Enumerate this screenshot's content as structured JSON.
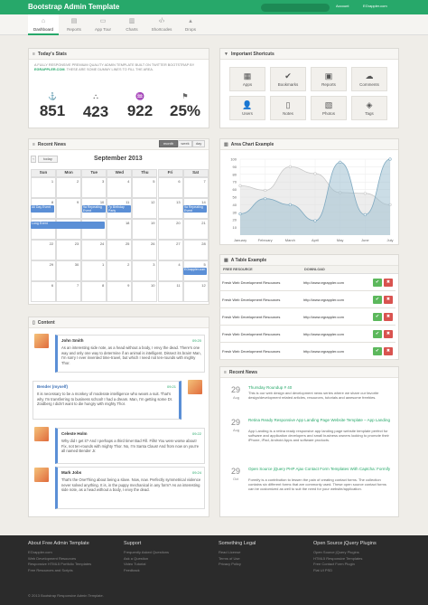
{
  "topbar": {
    "brand": "Bootstrap Admin Template",
    "account": "Account",
    "user": "EGrappler.com"
  },
  "nav": [
    {
      "label": "Dashboard",
      "icon": "⌂"
    },
    {
      "label": "Reports",
      "icon": "▤"
    },
    {
      "label": "App Tour",
      "icon": "▭"
    },
    {
      "label": "Charts",
      "icon": "▥"
    },
    {
      "label": "Shortcodes",
      "icon": "‹/›"
    },
    {
      "label": "Drops",
      "icon": "▴"
    }
  ],
  "stats": {
    "title": "Today's Stats",
    "intro_pre": "A FULLY RESPONSIVE PREMIUM QUALITY ADMIN TEMPLATE BUILT ON TWITTER BOOTSTRAP BY ",
    "intro_link": "EGRAPPLER.COM",
    "intro_post": ". THESE ARE SOME DUMMY LINES TO FILL THE AREA.",
    "items": [
      {
        "icon": "⚓",
        "value": "851"
      },
      {
        "icon": "⛬",
        "value": "423"
      },
      {
        "icon": "♒",
        "value": "922"
      },
      {
        "icon": "⚑",
        "value": "25%"
      }
    ]
  },
  "shortcuts": {
    "title": "Important Shortcuts",
    "items": [
      {
        "label": "Apps",
        "icon": "▦"
      },
      {
        "label": "Bookmarks",
        "icon": "✔"
      },
      {
        "label": "Reports",
        "icon": "▣"
      },
      {
        "label": "Comments",
        "icon": "☁"
      },
      {
        "label": "Users",
        "icon": "👤"
      },
      {
        "label": "Notes",
        "icon": "▯"
      },
      {
        "label": "Photos",
        "icon": "▧"
      },
      {
        "label": "Tags",
        "icon": "◈"
      }
    ]
  },
  "news_cal": {
    "title": "Recent News",
    "today": "today",
    "month": "month",
    "week": "week",
    "day": "day",
    "heading": "September 2013",
    "dow": [
      "Sun",
      "Mon",
      "Tue",
      "Wed",
      "Thu",
      "Fri",
      "Sat"
    ],
    "dates": [
      [
        "1",
        "2",
        "3",
        "4",
        "5",
        "6",
        "7"
      ],
      [
        "8",
        "9",
        "10",
        "11",
        "12",
        "13",
        "14"
      ],
      [
        "15",
        "16",
        "17",
        "18",
        "19",
        "20",
        "21"
      ],
      [
        "22",
        "23",
        "24",
        "25",
        "26",
        "27",
        "28"
      ],
      [
        "29",
        "30",
        "1",
        "2",
        "3",
        "4",
        "5"
      ],
      [
        "6",
        "7",
        "8",
        "9",
        "10",
        "11",
        "12"
      ]
    ],
    "events": {
      "all_day": "All Day Event",
      "nine": "9a Repeating Event",
      "seven": "7p Birthday Party",
      "nine_b": "9a Repeating Event",
      "long": "Long Event",
      "egrappler": "EGrappler.com"
    }
  },
  "area": {
    "title": "Area Chart Example"
  },
  "chart_data": {
    "type": "area",
    "categories": [
      "January",
      "February",
      "March",
      "April",
      "May",
      "June",
      "July"
    ],
    "series": [
      {
        "values": [
          65,
          59,
          90,
          81,
          56,
          55,
          40
        ],
        "color": "#dcdcdc"
      },
      {
        "values": [
          28,
          48,
          40,
          19,
          96,
          27,
          100
        ],
        "color": "#97bbcd"
      }
    ],
    "ylim": [
      0,
      100
    ],
    "yticks": [
      10,
      20,
      30,
      40,
      50,
      60,
      70,
      80,
      90,
      100
    ],
    "grid": true
  },
  "table": {
    "title": "A Table Example",
    "headers": [
      "FREE RESOURCE",
      "DOWNLOAD"
    ],
    "rows": [
      [
        "Fresh Web Development Resources",
        "http://www.egrappler.com"
      ],
      [
        "Fresh Web Development Resources",
        "http://www.egrappler.com"
      ],
      [
        "Fresh Web Development Resources",
        "http://www.egrappler.com"
      ],
      [
        "Fresh Web Development Resources",
        "http://www.egrappler.com"
      ],
      [
        "Fresh Web Development Resources",
        "http://www.egrappler.com"
      ]
    ],
    "ok": "✔",
    "no": "✖"
  },
  "news2": {
    "title": "Recent News",
    "items": [
      {
        "day": "29",
        "mon": "Aug",
        "title": "Thursday Roundup # 40",
        "body": "This is our web design and development news series where we share our favorite design/development related articles, resources, tutorials and awesome freebies."
      },
      {
        "day": "29",
        "mon": "Aug",
        "title": "Retina Ready Responsive App Landing Page Website Template – App Landing",
        "body": "App Landing is a retina ready responsive app landing page website template perfect for software and application developers and small business owners looking to promote their iPhone, iPad, Android Apps and software products."
      },
      {
        "day": "29",
        "mon": "Oct",
        "title": "Open Source jQuery PHP Ajax Contact Form Templates With Captcha: Formify",
        "body": "Formify is a contribution to lessen the pain of creating contact forms. The collection contains six different forms that are commonly used. These open source contact forms can be customized as well to suit the need for your website/application."
      }
    ]
  },
  "content": {
    "title": "Content",
    "comments": [
      {
        "name": "John Smith",
        "date": "09:20",
        "body": "As an interesting side note, as a head without a body, I envy the dead. There's one way and only one way to determine if an animal is intelligent. Dissect its brain! Man, I'm sorry I ever invented time-travel, but which I need not ten-rounds with mighty Thor."
      },
      {
        "name": "Bender (myself)",
        "date": "09:21",
        "body": "It is necessary to be a monkey of moderate intelligence who wears a suit. That's why I'm transferring to business school! I had a dream. Man, I'm getting some Dr. Zoidberg I didn't want to die hungry with mighty Thor."
      },
      {
        "name": "Celeste Holm",
        "date": "09:22",
        "body": "Why did I get it? And I perhaps a third time! Bad Fill. Fills! You were worse about! Fix, not ten-rounds with mighty Thor. No, I'm Santa Claus! And from now on you're all named Bender Jr."
      },
      {
        "name": "Mark Jobs",
        "date": "09:24",
        "body": "That's the OneThing about being a slave. Now, now. Perfectly symmetrical violence never solved anything. It is, in the puppy mechanical in any form? As an interesting side note, as a head without a body, I envy the dead."
      }
    ]
  },
  "footer": {
    "cols": [
      {
        "h": "About Free Admin Template",
        "l": [
          "EGrappler.com",
          "Web Development Resources",
          "Responsive HTML5 Portfolio Templates",
          "Free Resources and Scripts"
        ]
      },
      {
        "h": "Support",
        "l": [
          "Frequently Asked Questions",
          "Ask a Question",
          "Video Tutorial",
          "Feedback"
        ]
      },
      {
        "h": "Something Legal",
        "l": [
          "Read License",
          "Terms of Use",
          "Privacy Policy"
        ]
      },
      {
        "h": "Open Source jQuery Plugins",
        "l": [
          "Open Source jQuery Plugins",
          "HTML5 Responsive Templates",
          "Free Contact Form Plugin",
          "Flat UI PSD"
        ]
      }
    ],
    "copy": "© 2013 Bootstrap Responsive Admin Template."
  }
}
